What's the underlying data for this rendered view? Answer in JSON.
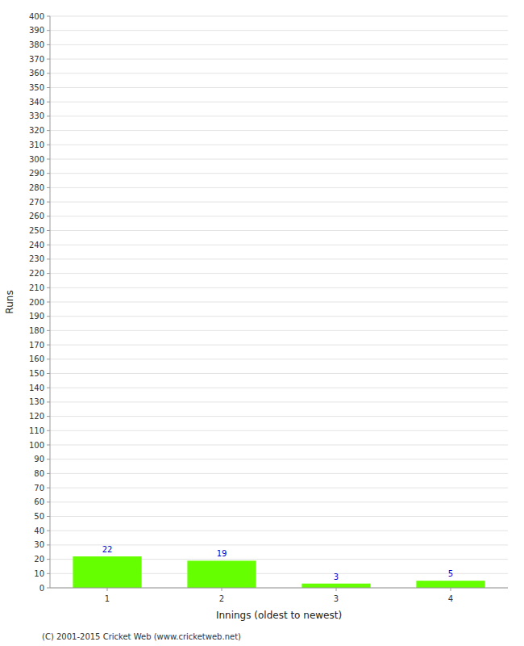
{
  "chart_data": {
    "type": "bar",
    "categories": [
      1,
      2,
      3,
      4
    ],
    "values": [
      22,
      19,
      3,
      5
    ],
    "color": "#66ff00",
    "xlabel": "Innings (oldest to newest)",
    "ylabel": "Runs",
    "ylim": [
      0,
      400
    ],
    "yticks": [
      0,
      10,
      20,
      30,
      40,
      50,
      60,
      70,
      80,
      90,
      100,
      110,
      120,
      130,
      140,
      150,
      160,
      170,
      180,
      190,
      200,
      210,
      220,
      230,
      240,
      250,
      260,
      270,
      280,
      290,
      300,
      310,
      320,
      330,
      340,
      350,
      360,
      370,
      380,
      390,
      400
    ],
    "grid": true,
    "data_labels": true,
    "annotations": [
      "(C) 2001-2015 Cricket Web (www.cricketweb.net)"
    ]
  }
}
